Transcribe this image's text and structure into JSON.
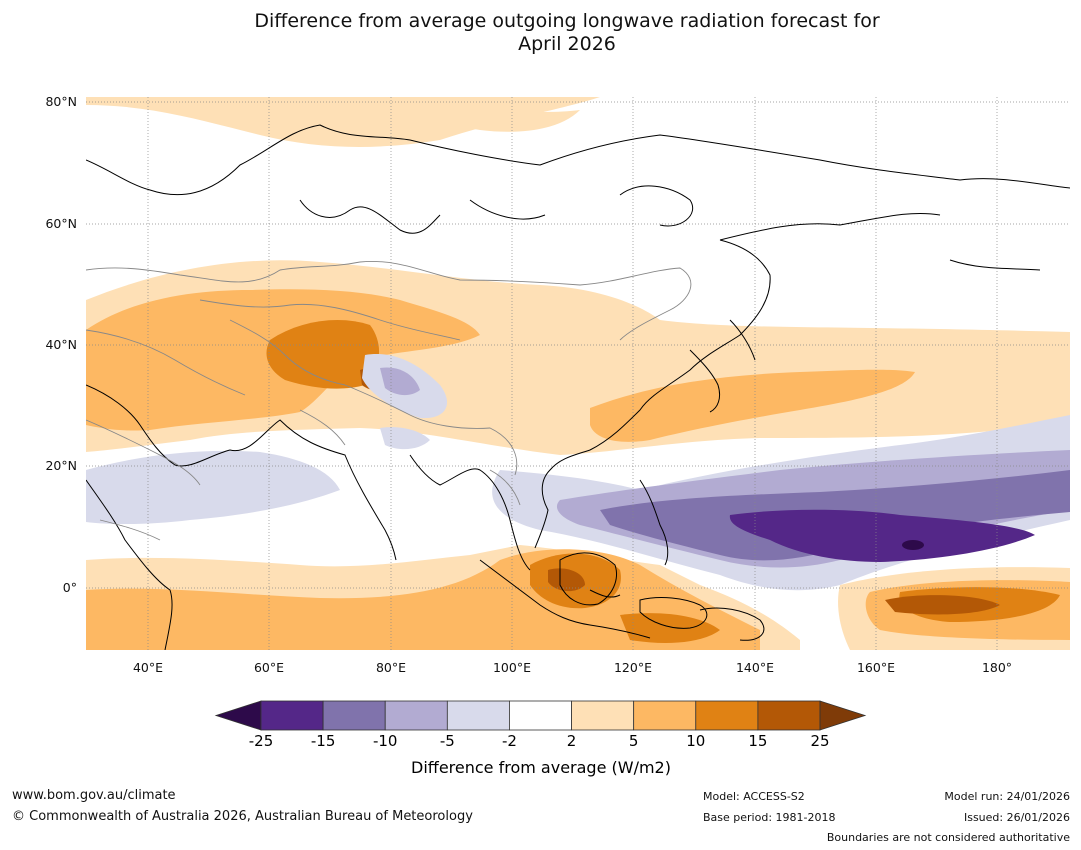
{
  "title": {
    "line1": "Difference from average outgoing longwave radiation forecast for",
    "line2": "April 2026"
  },
  "chart_data": {
    "type": "heatmap",
    "projection": "Plate Carrée map",
    "region": "Asia / Western Pacific",
    "lat_labels": [
      "80°N",
      "60°N",
      "40°N",
      "20°N",
      "0°"
    ],
    "lon_labels": [
      "40°E",
      "60°E",
      "80°E",
      "100°E",
      "120°E",
      "140°E",
      "160°E",
      "180°"
    ],
    "lat_range": [
      -10,
      81
    ],
    "lon_range": [
      30,
      192
    ],
    "colorbar": {
      "ticks": [
        "-25",
        "-15",
        "-10",
        "-5",
        "-2",
        "2",
        "5",
        "10",
        "15",
        "25"
      ],
      "colors": [
        "#2d0a4a",
        "#542788",
        "#8073ac",
        "#b2abd2",
        "#d8daeb",
        "#ffffff",
        "#fee0b6",
        "#fdb863",
        "#e08214",
        "#b35806",
        "#7f3b08"
      ],
      "label": "Difference from average (W/m2)",
      "extend": "both"
    },
    "features": [
      {
        "name": "suppressed convection (positive anomaly) over Central Asia / Tibet",
        "level": "10-15"
      },
      {
        "name": "enhanced convection band over tropical west Pacific",
        "level": "-15 to -25"
      },
      {
        "name": "suppressed convection over Indonesia / Borneo",
        "level": "10-15"
      },
      {
        "name": "suppressed convection over central Pacific near equator",
        "level": "10-15"
      }
    ]
  },
  "footer": {
    "url": "www.bom.gov.au/climate",
    "copyright": "© Commonwealth of Australia 2026, Australian Bureau of Meteorology",
    "model": "Model: ACCESS-S2",
    "base_period": "Base period: 1981-2018",
    "model_run": "Model run: 24/01/2026",
    "issued": "Issued: 26/01/2026",
    "disclaimer": "Boundaries are not considered authoritative"
  }
}
